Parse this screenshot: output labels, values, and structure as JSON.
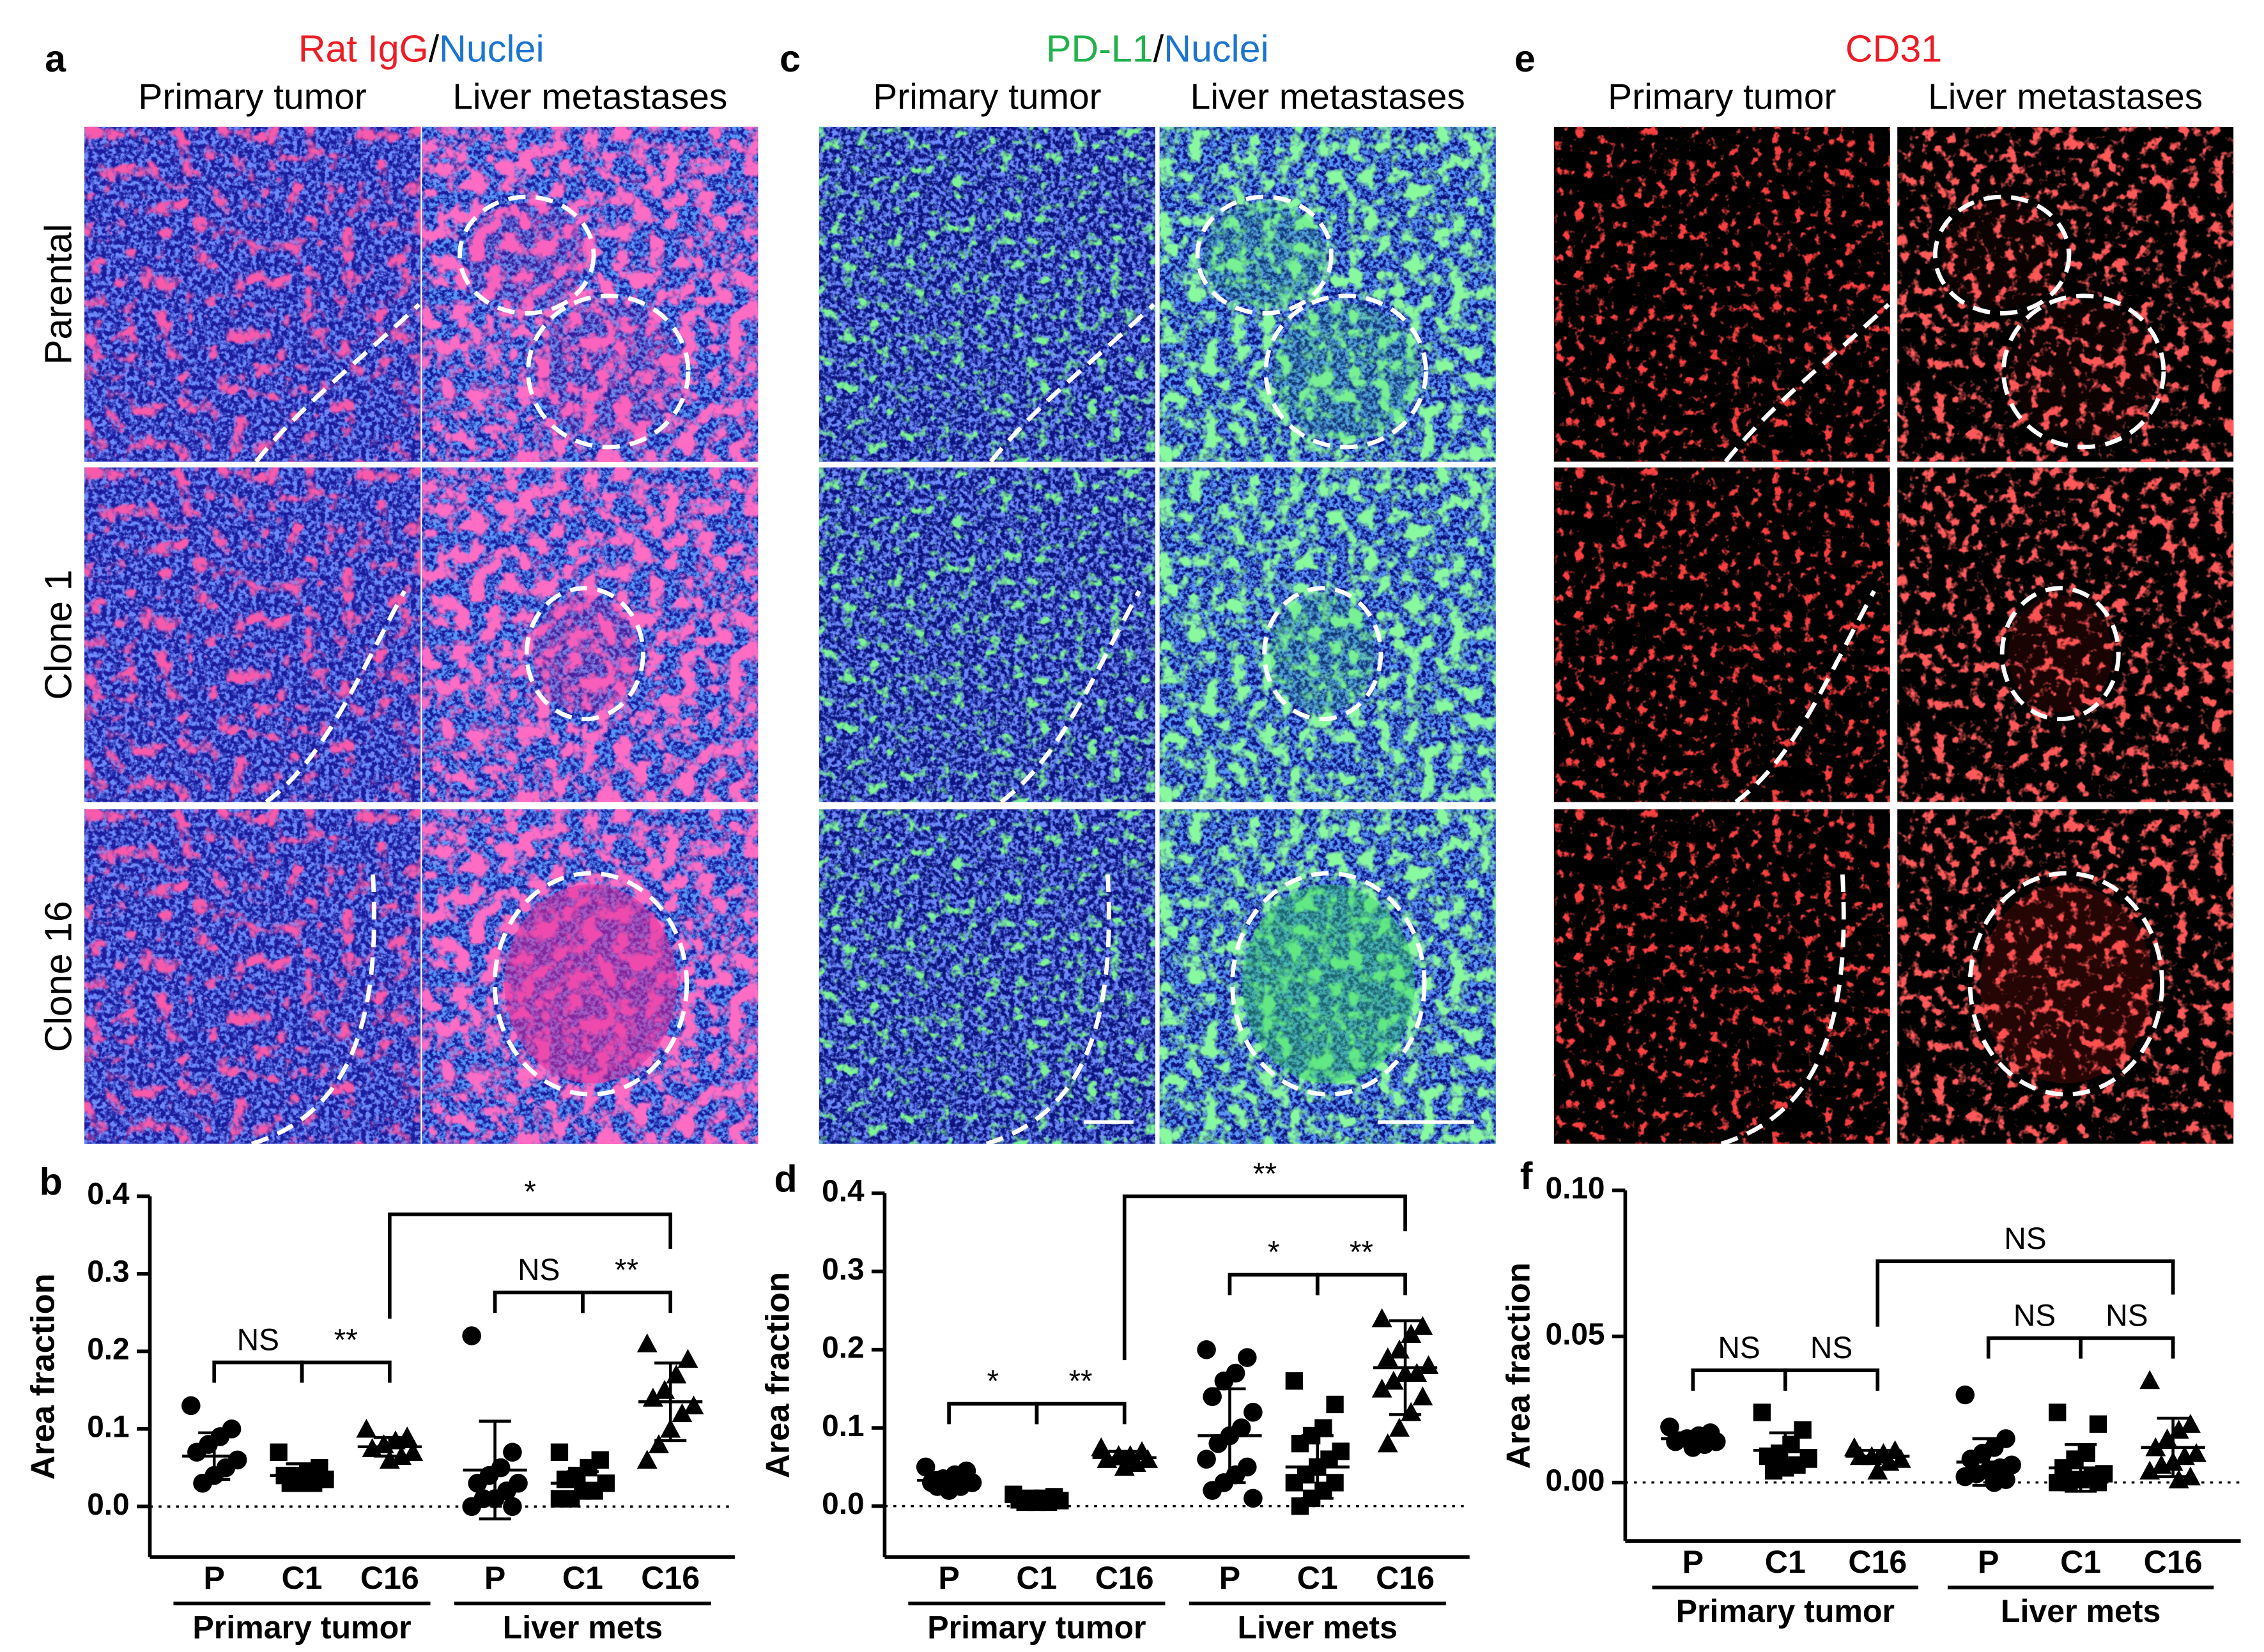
{
  "figure": {
    "panels": [
      {
        "letter": "a",
        "stain": [
          {
            "text": "Rat IgG",
            "color": "#ee1c25"
          },
          {
            "text": "/",
            "color": "#000000"
          },
          {
            "text": "Nuclei",
            "color": "#1b75d0"
          }
        ],
        "columns": [
          "Primary tumor",
          "Liver metastases"
        ],
        "rows": [
          "Parental",
          "Clone 1",
          "Clone 16"
        ]
      },
      {
        "letter": "c",
        "stain": [
          {
            "text": "PD-L1",
            "color": "#22b14c"
          },
          {
            "text": "/",
            "color": "#000000"
          },
          {
            "text": "Nuclei",
            "color": "#1b75d0"
          }
        ],
        "columns": [
          "Primary tumor",
          "Liver metastases"
        ]
      },
      {
        "letter": "e",
        "stain": [
          {
            "text": "CD31",
            "color": "#ee1c25"
          }
        ],
        "columns": [
          "Primary tumor",
          "Liver metastases"
        ]
      }
    ]
  },
  "chart_data": [
    {
      "type": "dotplot",
      "letter": "b",
      "ylabel": "Area fraction",
      "categories": [
        "P",
        "C1",
        "C16",
        "P",
        "C1",
        "C16"
      ],
      "group_labels": [
        "Primary tumor",
        "Liver mets"
      ],
      "markers": [
        "circle",
        "square",
        "triangle",
        "circle",
        "square",
        "triangle"
      ],
      "color": "#000000",
      "points": [
        [
          0.13,
          0.1,
          0.09,
          0.08,
          0.07,
          0.06,
          0.05,
          0.04,
          0.03
        ],
        [
          0.07,
          0.05,
          0.045,
          0.04,
          0.04,
          0.035,
          0.03,
          0.03,
          0.03
        ],
        [
          0.1,
          0.09,
          0.085,
          0.08,
          0.075,
          0.07,
          0.065,
          0.06
        ],
        [
          0.22,
          0.07,
          0.05,
          0.04,
          0.03,
          0.03,
          0.02,
          0.01,
          0.01,
          0.0,
          0.0
        ],
        [
          0.07,
          0.06,
          0.05,
          0.04,
          0.035,
          0.03,
          0.02,
          0.02,
          0.01,
          0.01
        ],
        [
          0.21,
          0.19,
          0.17,
          0.15,
          0.14,
          0.13,
          0.12,
          0.1,
          0.08,
          0.06
        ]
      ],
      "means": [
        0.065,
        0.04,
        0.077,
        0.047,
        0.03,
        0.135
      ],
      "sds": [
        0.03,
        0.015,
        0.012,
        0.063,
        0.015,
        0.05
      ],
      "significance": [
        {
          "from": 0,
          "to": 1,
          "label": "NS"
        },
        {
          "from": 1,
          "to": 2,
          "label": "**"
        },
        {
          "from": 3,
          "to": 4,
          "label": "NS"
        },
        {
          "from": 4,
          "to": 5,
          "label": "**"
        },
        {
          "from": 2,
          "to": 5,
          "label": "*"
        }
      ],
      "ylim": [
        -0.065,
        0.4
      ],
      "yticks": [
        {
          "value": 0,
          "label": "0.0"
        },
        0.1,
        0.2,
        0.3,
        0.4
      ],
      "reference_line": 0
    },
    {
      "type": "dotplot",
      "letter": "d",
      "ylabel": "Area fraction",
      "categories": [
        "P",
        "C1",
        "C16",
        "P",
        "C1",
        "C16"
      ],
      "group_labels": [
        "Primary tumor",
        "Liver mets"
      ],
      "markers": [
        "circle",
        "square",
        "triangle",
        "circle",
        "square",
        "triangle"
      ],
      "color": "#000000",
      "points": [
        [
          0.05,
          0.045,
          0.04,
          0.035,
          0.03,
          0.03,
          0.025,
          0.02,
          0.025
        ],
        [
          0.015,
          0.012,
          0.01,
          0.01,
          0.008,
          0.007,
          0.005,
          0.005,
          0.005
        ],
        [
          0.075,
          0.07,
          0.065,
          0.065,
          0.06,
          0.06,
          0.055,
          0.05
        ],
        [
          0.2,
          0.19,
          0.17,
          0.16,
          0.14,
          0.12,
          0.1,
          0.09,
          0.08,
          0.06,
          0.05,
          0.04,
          0.03,
          0.02,
          0.01
        ],
        [
          0.16,
          0.13,
          0.1,
          0.09,
          0.08,
          0.07,
          0.06,
          0.05,
          0.04,
          0.03,
          0.03,
          0.02,
          0.01,
          0.0
        ],
        [
          0.24,
          0.23,
          0.22,
          0.2,
          0.19,
          0.18,
          0.17,
          0.17,
          0.16,
          0.15,
          0.14,
          0.12,
          0.1,
          0.08
        ]
      ],
      "means": [
        0.033,
        0.008,
        0.062,
        0.09,
        0.05,
        0.177
      ],
      "sds": [
        0.01,
        0.004,
        0.008,
        0.06,
        0.04,
        0.06
      ],
      "significance": [
        {
          "from": 0,
          "to": 1,
          "label": "*"
        },
        {
          "from": 1,
          "to": 2,
          "label": "**"
        },
        {
          "from": 3,
          "to": 4,
          "label": "*"
        },
        {
          "from": 4,
          "to": 5,
          "label": "**"
        },
        {
          "from": 2,
          "to": 5,
          "label": "**"
        }
      ],
      "ylim": [
        -0.065,
        0.4
      ],
      "yticks": [
        {
          "value": 0,
          "label": "0.0"
        },
        0.1,
        0.2,
        0.3,
        0.4
      ],
      "reference_line": 0
    },
    {
      "type": "dotplot",
      "letter": "f",
      "ylabel": "Area fraction",
      "categories": [
        "P",
        "C1",
        "C16",
        "P",
        "C1",
        "C16"
      ],
      "group_labels": [
        "Primary tumor",
        "Liver mets"
      ],
      "markers": [
        "circle",
        "square",
        "triangle",
        "circle",
        "square",
        "triangle"
      ],
      "color": "#000000",
      "points": [
        [
          0.019,
          0.017,
          0.016,
          0.015,
          0.014,
          0.014,
          0.013,
          0.012
        ],
        [
          0.024,
          0.018,
          0.013,
          0.01,
          0.009,
          0.008,
          0.006,
          0.005,
          0.004
        ],
        [
          0.012,
          0.011,
          0.01,
          0.009,
          0.009,
          0.008,
          0.007,
          0.004
        ],
        [
          0.03,
          0.015,
          0.012,
          0.01,
          0.008,
          0.006,
          0.005,
          0.004,
          0.003,
          0.002,
          0.001,
          0.0
        ],
        [
          0.024,
          0.02,
          0.01,
          0.008,
          0.005,
          0.003,
          0.002,
          0.001,
          0.0,
          0.0,
          0.0
        ],
        [
          0.035,
          0.02,
          0.018,
          0.015,
          0.012,
          0.01,
          0.009,
          0.007,
          0.006,
          0.004,
          0.002,
          0.001
        ]
      ],
      "means": [
        0.015,
        0.011,
        0.009,
        0.007,
        0.005,
        0.012
      ],
      "sds": [
        0.002,
        0.006,
        0.002,
        0.008,
        0.008,
        0.01
      ],
      "significance": [
        {
          "from": 0,
          "to": 1,
          "label": "NS"
        },
        {
          "from": 1,
          "to": 2,
          "label": "NS"
        },
        {
          "from": 3,
          "to": 4,
          "label": "NS"
        },
        {
          "from": 4,
          "to": 5,
          "label": "NS"
        },
        {
          "from": 2,
          "to": 5,
          "label": "NS"
        }
      ],
      "ylim": [
        -0.02,
        0.1
      ],
      "yticks": [
        {
          "value": 0,
          "label": "0.00"
        },
        0.05,
        {
          "value": 0.1,
          "label": "0.10"
        }
      ],
      "reference_line": 0
    }
  ]
}
